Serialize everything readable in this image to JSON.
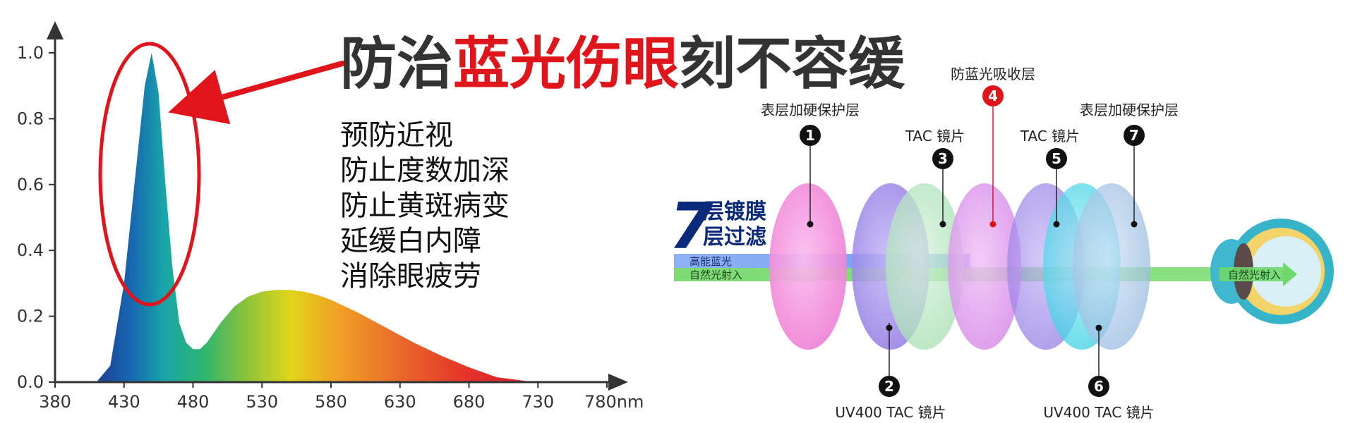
{
  "headline": {
    "part1": "防治",
    "part2": "蓝光伤眼",
    "part3": "刻不容缓",
    "color_dark": "#333333",
    "color_red": "#e0151b"
  },
  "benefits": [
    "预防近视",
    "防止度数加深",
    "防止黄斑病变",
    "延缓白内障",
    "消除眼疲劳"
  ],
  "chart_data": {
    "type": "area",
    "title": "",
    "xlabel": "",
    "ylabel": "",
    "x_unit": "nm",
    "xlim": [
      380,
      780
    ],
    "ylim": [
      0,
      1.0
    ],
    "xticks": [
      380,
      430,
      480,
      530,
      580,
      630,
      680,
      730,
      780
    ],
    "x_tick_labels": [
      "380",
      "430",
      "480",
      "530",
      "580",
      "630",
      "680",
      "730",
      "780nm"
    ],
    "yticks": [
      0,
      0.2,
      0.4,
      0.6,
      0.8,
      1.0
    ],
    "y_tick_labels": [
      "0.0",
      "0.2",
      "0.4",
      "0.6",
      "0.8",
      "1.0"
    ],
    "series": [
      {
        "x": [
          380,
          410,
          420,
          430,
          440,
          445,
          450,
          455,
          460,
          465,
          470,
          475,
          480,
          485,
          490,
          500,
          510,
          520,
          530,
          540,
          550,
          560,
          570,
          580,
          590,
          600,
          620,
          640,
          660,
          680,
          700,
          720,
          730
        ],
        "values": [
          0,
          0.0,
          0.05,
          0.3,
          0.7,
          0.9,
          1.0,
          0.88,
          0.6,
          0.35,
          0.18,
          0.12,
          0.1,
          0.1,
          0.12,
          0.18,
          0.23,
          0.26,
          0.275,
          0.28,
          0.28,
          0.275,
          0.265,
          0.25,
          0.23,
          0.21,
          0.165,
          0.12,
          0.08,
          0.045,
          0.015,
          0.004,
          0
        ]
      }
    ],
    "highlight": "blue-light peak circled",
    "grid": false,
    "legend": "none"
  },
  "layers_diagram": {
    "title_number": "7",
    "title_line1": "层镀膜",
    "title_line2": "层过滤",
    "beam_bluelight_label": "高能蓝光",
    "beam_natural_label": "自然光射入",
    "eye_label": "自然光射入",
    "labels": [
      {
        "num": "1",
        "text": "表层加硬保护层"
      },
      {
        "num": "2",
        "text": "UV400 TAC 镜片"
      },
      {
        "num": "3",
        "text": "TAC 镜片"
      },
      {
        "num": "4",
        "text": "防蓝光吸收层"
      },
      {
        "num": "5",
        "text": "TAC 镜片"
      },
      {
        "num": "6",
        "text": "UV400 TAC 镜片"
      },
      {
        "num": "7",
        "text": "表层加硬保护层"
      }
    ],
    "colors": {
      "title_blue": "#0b2a7a",
      "pink": "#f08ad8",
      "lavender": "#9b86e8",
      "mint": "#b4e6c2",
      "cyan": "#4fd8e8",
      "light_blue": "#9cc0e8",
      "red_marker": "#e0151b",
      "beam_green": "#6fd86a",
      "beam_blue": "#7fa8f4"
    }
  }
}
